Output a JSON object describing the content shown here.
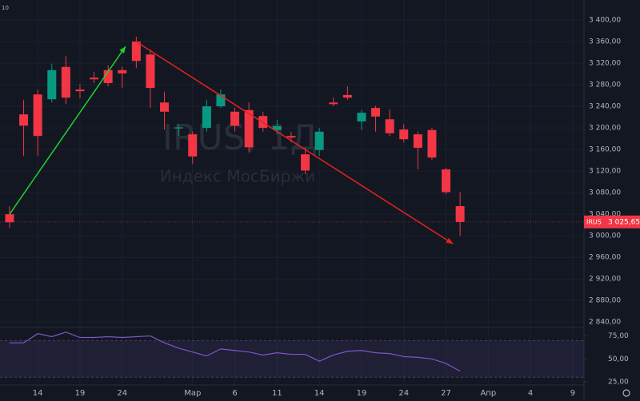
{
  "chart_data": {
    "type": "candlestick",
    "title": "IRUS, 1Д",
    "subtitle": "Индекс МосБиржи",
    "corner_label": "10",
    "up_color": "#089981",
    "down_color": "#f23645",
    "open": [
      3040,
      3225,
      3262,
      3253,
      3313,
      3271,
      3293,
      3307,
      3307,
      3360,
      3336,
      3247,
      3199,
      3188,
      3200,
      3240,
      3230,
      3233,
      3222,
      3196,
      3185,
      3151,
      3159,
      3247,
      3261,
      3212,
      3237,
      3216,
      3197,
      3188,
      3196,
      3123,
      3055
    ],
    "high": [
      3055,
      3252,
      3271,
      3319,
      3333,
      3281,
      3304,
      3316,
      3313,
      3369,
      3345,
      3267,
      3207,
      3193,
      3252,
      3271,
      3237,
      3247,
      3230,
      3215,
      3193,
      3163,
      3200,
      3256,
      3277,
      3233,
      3241,
      3234,
      3207,
      3193,
      3200,
      3126,
      3081
    ],
    "low": [
      3015,
      3148,
      3148,
      3247,
      3244,
      3255,
      3283,
      3277,
      3274,
      3311,
      3237,
      3197,
      3185,
      3133,
      3193,
      3237,
      3193,
      3156,
      3193,
      3188,
      3173,
      3114,
      3148,
      3240,
      3252,
      3196,
      3193,
      3185,
      3173,
      3123,
      3141,
      3077,
      3000
    ],
    "close": [
      3025,
      3204,
      3185,
      3307,
      3256,
      3268,
      3290,
      3283,
      3301,
      3324,
      3274,
      3230,
      3201,
      3147,
      3240,
      3262,
      3204,
      3164,
      3200,
      3203,
      3182,
      3121,
      3193,
      3244,
      3256,
      3228,
      3221,
      3190,
      3179,
      3163,
      3145,
      3081,
      3025.65
    ],
    "xlim": [
      -0.68,
      40.8
    ],
    "xticks": [
      {
        "value": 2,
        "label": "14"
      },
      {
        "value": 5,
        "label": "19"
      },
      {
        "value": 8,
        "label": "24"
      },
      {
        "value": 13,
        "label": "Мар"
      },
      {
        "value": 16,
        "label": "6"
      },
      {
        "value": 19,
        "label": "11"
      },
      {
        "value": 22,
        "label": "14"
      },
      {
        "value": 25,
        "label": "19"
      },
      {
        "value": 28,
        "label": "24"
      },
      {
        "value": 31,
        "label": "27"
      },
      {
        "value": 34,
        "label": "Апр"
      },
      {
        "value": 37,
        "label": "4"
      },
      {
        "value": 40,
        "label": "9"
      }
    ],
    "ylim": [
      2830,
      3437
    ],
    "yticks": [
      {
        "value": 2840,
        "label": "2 840,00"
      },
      {
        "value": 2880,
        "label": "2 880,00"
      },
      {
        "value": 2920,
        "label": "2 920,00"
      },
      {
        "value": 2960,
        "label": "2 960,00"
      },
      {
        "value": 3000,
        "label": "3 000,00"
      },
      {
        "value": 3040,
        "label": "3 040,00"
      },
      {
        "value": 3080,
        "label": "3 080,00"
      },
      {
        "value": 3120,
        "label": "3 120,00"
      },
      {
        "value": 3160,
        "label": "3 160,00"
      },
      {
        "value": 3200,
        "label": "3 200,00"
      },
      {
        "value": 3240,
        "label": "3 240,00"
      },
      {
        "value": 3280,
        "label": "3 280,00"
      },
      {
        "value": 3320,
        "label": "3 320,00"
      },
      {
        "value": 3360,
        "label": "3 360,00"
      },
      {
        "value": 3400,
        "label": "3 400,00"
      }
    ],
    "last_price": {
      "symbol": "IRUS",
      "label": "3 025,65"
    },
    "annotations": [
      {
        "type": "arrow",
        "color": "#22d12e",
        "from": [
          0,
          3040
        ],
        "to": [
          8.24,
          3351
        ]
      },
      {
        "type": "arrow",
        "color": "#e8211f",
        "from": [
          8.98,
          3360
        ],
        "to": [
          31.5,
          2985
        ]
      }
    ],
    "rsi": {
      "type": "line",
      "color": "#7e57c2",
      "values": [
        67.5,
        67.5,
        77.5,
        74.2,
        79.2,
        73.3,
        73.3,
        74.2,
        73.3,
        74.2,
        75,
        67.5,
        61.7,
        57.5,
        53.3,
        60.8,
        59.2,
        57.5,
        54.2,
        56.7,
        55,
        55,
        47.5,
        54.2,
        58.3,
        59.2,
        56.7,
        55.8,
        52.5,
        51.7,
        50,
        45,
        36.7
      ],
      "ylim": [
        23.3,
        84.2
      ],
      "yticks": [
        {
          "value": 75,
          "label": "75,00"
        },
        {
          "value": 50,
          "label": "50,00"
        },
        {
          "value": 25,
          "label": "25,00"
        }
      ],
      "band": [
        30,
        70
      ]
    }
  }
}
